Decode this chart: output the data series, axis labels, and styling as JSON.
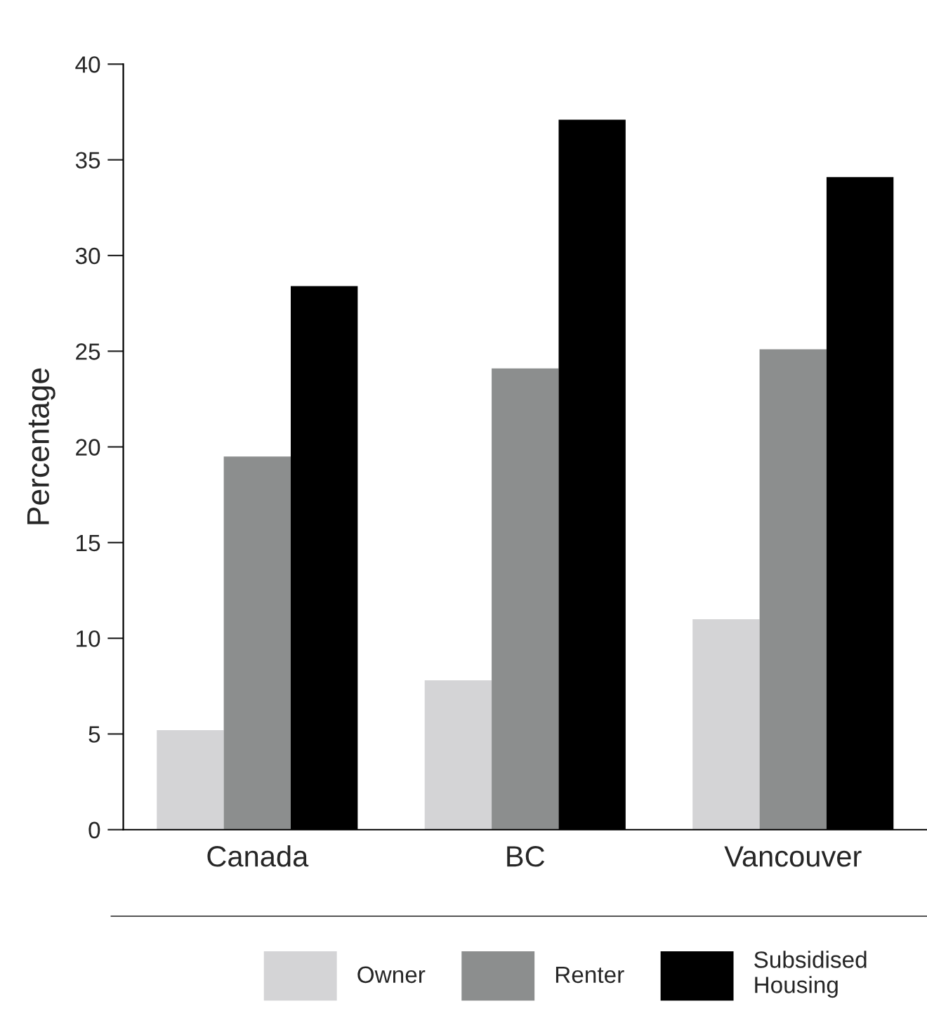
{
  "chart_data": {
    "type": "bar",
    "ylabel": "Percentage",
    "categories": [
      "Canada",
      "BC",
      "Vancouver"
    ],
    "series": [
      {
        "name": "Owner",
        "color": "#d4d4d6",
        "values": [
          5.2,
          7.8,
          11.0
        ]
      },
      {
        "name": "Renter",
        "color": "#8c8e8e",
        "values": [
          19.5,
          24.1,
          25.1
        ]
      },
      {
        "name": "Subsidised\nHousing",
        "color": "#000000",
        "values": [
          28.4,
          37.1,
          34.1
        ]
      }
    ],
    "ylim": [
      0,
      40
    ],
    "yticks": [
      0,
      5,
      10,
      15,
      20,
      25,
      30,
      35,
      40
    ],
    "grid": false,
    "legend": "bottom"
  }
}
